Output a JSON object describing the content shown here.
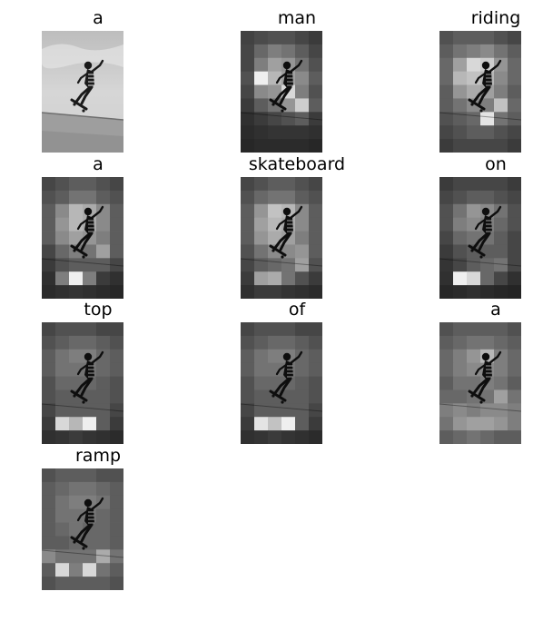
{
  "panels": [
    {
      "word": "a",
      "kind": "photo",
      "tone": [
        [
          0,
          0,
          0,
          0,
          0,
          0
        ],
        [
          0,
          0,
          0,
          0,
          0,
          0
        ],
        [
          0,
          0,
          0,
          0,
          0,
          0
        ],
        [
          0,
          0,
          0,
          0,
          0,
          0
        ],
        [
          0,
          0,
          0,
          0,
          0,
          0
        ],
        [
          0,
          0,
          0,
          0,
          0,
          0
        ],
        [
          0,
          0,
          0,
          0,
          0,
          0
        ],
        [
          0,
          0,
          0,
          0,
          0,
          0
        ],
        [
          0,
          0,
          0,
          0,
          0,
          0
        ]
      ]
    },
    {
      "word": "man",
      "kind": "attention",
      "tone": [
        [
          0.18,
          0.22,
          0.25,
          0.25,
          0.2,
          0.15
        ],
        [
          0.2,
          0.35,
          0.45,
          0.4,
          0.3,
          0.2
        ],
        [
          0.2,
          0.45,
          0.6,
          0.55,
          0.4,
          0.25
        ],
        [
          0.25,
          0.95,
          0.7,
          0.6,
          0.5,
          0.3
        ],
        [
          0.2,
          0.5,
          0.55,
          0.85,
          0.45,
          0.25
        ],
        [
          0.15,
          0.3,
          0.4,
          0.55,
          0.8,
          0.3
        ],
        [
          0.1,
          0.15,
          0.2,
          0.25,
          0.3,
          0.15
        ],
        [
          0.08,
          0.1,
          0.12,
          0.12,
          0.12,
          0.1
        ],
        [
          0.06,
          0.08,
          0.08,
          0.08,
          0.08,
          0.06
        ]
      ]
    },
    {
      "word": "riding",
      "kind": "attention",
      "tone": [
        [
          0.25,
          0.3,
          0.3,
          0.3,
          0.25,
          0.2
        ],
        [
          0.3,
          0.4,
          0.45,
          0.5,
          0.4,
          0.3
        ],
        [
          0.35,
          0.6,
          0.85,
          0.8,
          0.55,
          0.35
        ],
        [
          0.35,
          0.7,
          0.75,
          0.7,
          0.5,
          0.35
        ],
        [
          0.3,
          0.55,
          0.65,
          0.6,
          0.45,
          0.3
        ],
        [
          0.3,
          0.4,
          0.5,
          0.45,
          0.75,
          0.35
        ],
        [
          0.25,
          0.3,
          0.35,
          0.9,
          0.4,
          0.3
        ],
        [
          0.2,
          0.25,
          0.3,
          0.3,
          0.25,
          0.2
        ],
        [
          0.15,
          0.2,
          0.2,
          0.2,
          0.2,
          0.15
        ]
      ]
    },
    {
      "word": "a",
      "kind": "attention",
      "tone": [
        [
          0.2,
          0.25,
          0.3,
          0.3,
          0.25,
          0.2
        ],
        [
          0.25,
          0.3,
          0.4,
          0.4,
          0.3,
          0.25
        ],
        [
          0.3,
          0.5,
          0.7,
          0.65,
          0.5,
          0.3
        ],
        [
          0.3,
          0.55,
          0.7,
          0.65,
          0.5,
          0.3
        ],
        [
          0.3,
          0.5,
          0.6,
          0.55,
          0.45,
          0.3
        ],
        [
          0.2,
          0.35,
          0.45,
          0.4,
          0.6,
          0.3
        ],
        [
          0.15,
          0.25,
          0.3,
          0.3,
          0.3,
          0.2
        ],
        [
          0.1,
          0.45,
          0.95,
          0.45,
          0.15,
          0.1
        ],
        [
          0.08,
          0.1,
          0.12,
          0.1,
          0.08,
          0.06
        ]
      ]
    },
    {
      "word": "skateboard",
      "kind": "attention",
      "tone": [
        [
          0.2,
          0.25,
          0.3,
          0.3,
          0.25,
          0.2
        ],
        [
          0.25,
          0.35,
          0.4,
          0.4,
          0.3,
          0.25
        ],
        [
          0.3,
          0.55,
          0.75,
          0.7,
          0.5,
          0.3
        ],
        [
          0.3,
          0.6,
          0.7,
          0.65,
          0.5,
          0.3
        ],
        [
          0.3,
          0.55,
          0.65,
          0.6,
          0.45,
          0.3
        ],
        [
          0.25,
          0.4,
          0.5,
          0.5,
          0.55,
          0.3
        ],
        [
          0.2,
          0.3,
          0.35,
          0.4,
          0.6,
          0.25
        ],
        [
          0.15,
          0.6,
          0.65,
          0.4,
          0.25,
          0.15
        ],
        [
          0.1,
          0.15,
          0.15,
          0.12,
          0.1,
          0.08
        ]
      ]
    },
    {
      "word": "on",
      "kind": "attention",
      "tone": [
        [
          0.15,
          0.2,
          0.2,
          0.2,
          0.2,
          0.15
        ],
        [
          0.2,
          0.25,
          0.3,
          0.3,
          0.25,
          0.2
        ],
        [
          0.25,
          0.4,
          0.55,
          0.5,
          0.4,
          0.25
        ],
        [
          0.25,
          0.45,
          0.5,
          0.45,
          0.35,
          0.25
        ],
        [
          0.2,
          0.35,
          0.4,
          0.4,
          0.3,
          0.2
        ],
        [
          0.15,
          0.25,
          0.3,
          0.3,
          0.3,
          0.2
        ],
        [
          0.12,
          0.2,
          0.3,
          0.35,
          0.4,
          0.2
        ],
        [
          0.1,
          0.95,
          0.85,
          0.35,
          0.2,
          0.1
        ],
        [
          0.06,
          0.08,
          0.1,
          0.08,
          0.06,
          0.05
        ]
      ]
    },
    {
      "word": "top",
      "kind": "attention",
      "tone": [
        [
          0.2,
          0.25,
          0.25,
          0.25,
          0.2,
          0.2
        ],
        [
          0.25,
          0.3,
          0.35,
          0.35,
          0.3,
          0.25
        ],
        [
          0.3,
          0.4,
          0.45,
          0.45,
          0.35,
          0.3
        ],
        [
          0.3,
          0.4,
          0.4,
          0.4,
          0.35,
          0.3
        ],
        [
          0.25,
          0.35,
          0.35,
          0.35,
          0.3,
          0.25
        ],
        [
          0.25,
          0.3,
          0.3,
          0.3,
          0.3,
          0.25
        ],
        [
          0.2,
          0.3,
          0.3,
          0.3,
          0.3,
          0.2
        ],
        [
          0.15,
          0.85,
          0.7,
          0.95,
          0.3,
          0.15
        ],
        [
          0.1,
          0.12,
          0.15,
          0.12,
          0.1,
          0.08
        ]
      ]
    },
    {
      "word": "of",
      "kind": "attention",
      "tone": [
        [
          0.2,
          0.25,
          0.25,
          0.25,
          0.2,
          0.2
        ],
        [
          0.25,
          0.3,
          0.35,
          0.35,
          0.3,
          0.25
        ],
        [
          0.3,
          0.4,
          0.45,
          0.45,
          0.35,
          0.3
        ],
        [
          0.3,
          0.4,
          0.4,
          0.4,
          0.35,
          0.3
        ],
        [
          0.25,
          0.35,
          0.35,
          0.35,
          0.3,
          0.25
        ],
        [
          0.25,
          0.3,
          0.3,
          0.3,
          0.3,
          0.25
        ],
        [
          0.2,
          0.3,
          0.3,
          0.3,
          0.3,
          0.2
        ],
        [
          0.15,
          0.9,
          0.75,
          0.95,
          0.3,
          0.15
        ],
        [
          0.1,
          0.12,
          0.15,
          0.12,
          0.1,
          0.08
        ]
      ]
    },
    {
      "word": "a",
      "kind": "attention",
      "tone": [
        [
          0.25,
          0.3,
          0.3,
          0.3,
          0.3,
          0.25
        ],
        [
          0.3,
          0.35,
          0.4,
          0.4,
          0.35,
          0.3
        ],
        [
          0.35,
          0.45,
          0.55,
          0.7,
          0.45,
          0.35
        ],
        [
          0.35,
          0.45,
          0.5,
          0.5,
          0.45,
          0.35
        ],
        [
          0.3,
          0.4,
          0.4,
          0.45,
          0.4,
          0.3
        ],
        [
          0.35,
          0.35,
          0.4,
          0.4,
          0.6,
          0.4
        ],
        [
          0.45,
          0.5,
          0.45,
          0.5,
          0.5,
          0.45
        ],
        [
          0.4,
          0.55,
          0.6,
          0.6,
          0.55,
          0.45
        ],
        [
          0.3,
          0.35,
          0.4,
          0.35,
          0.3,
          0.3
        ]
      ]
    },
    {
      "word": "ramp",
      "kind": "attention",
      "tone": [
        [
          0.25,
          0.3,
          0.3,
          0.3,
          0.25,
          0.25
        ],
        [
          0.3,
          0.35,
          0.4,
          0.4,
          0.35,
          0.3
        ],
        [
          0.3,
          0.4,
          0.45,
          0.45,
          0.4,
          0.3
        ],
        [
          0.3,
          0.4,
          0.4,
          0.4,
          0.35,
          0.3
        ],
        [
          0.3,
          0.35,
          0.4,
          0.35,
          0.35,
          0.3
        ],
        [
          0.3,
          0.3,
          0.35,
          0.35,
          0.35,
          0.3
        ],
        [
          0.5,
          0.4,
          0.4,
          0.4,
          0.65,
          0.4
        ],
        [
          0.3,
          0.85,
          0.45,
          0.85,
          0.4,
          0.3
        ],
        [
          0.25,
          0.3,
          0.3,
          0.3,
          0.3,
          0.25
        ]
      ]
    }
  ]
}
